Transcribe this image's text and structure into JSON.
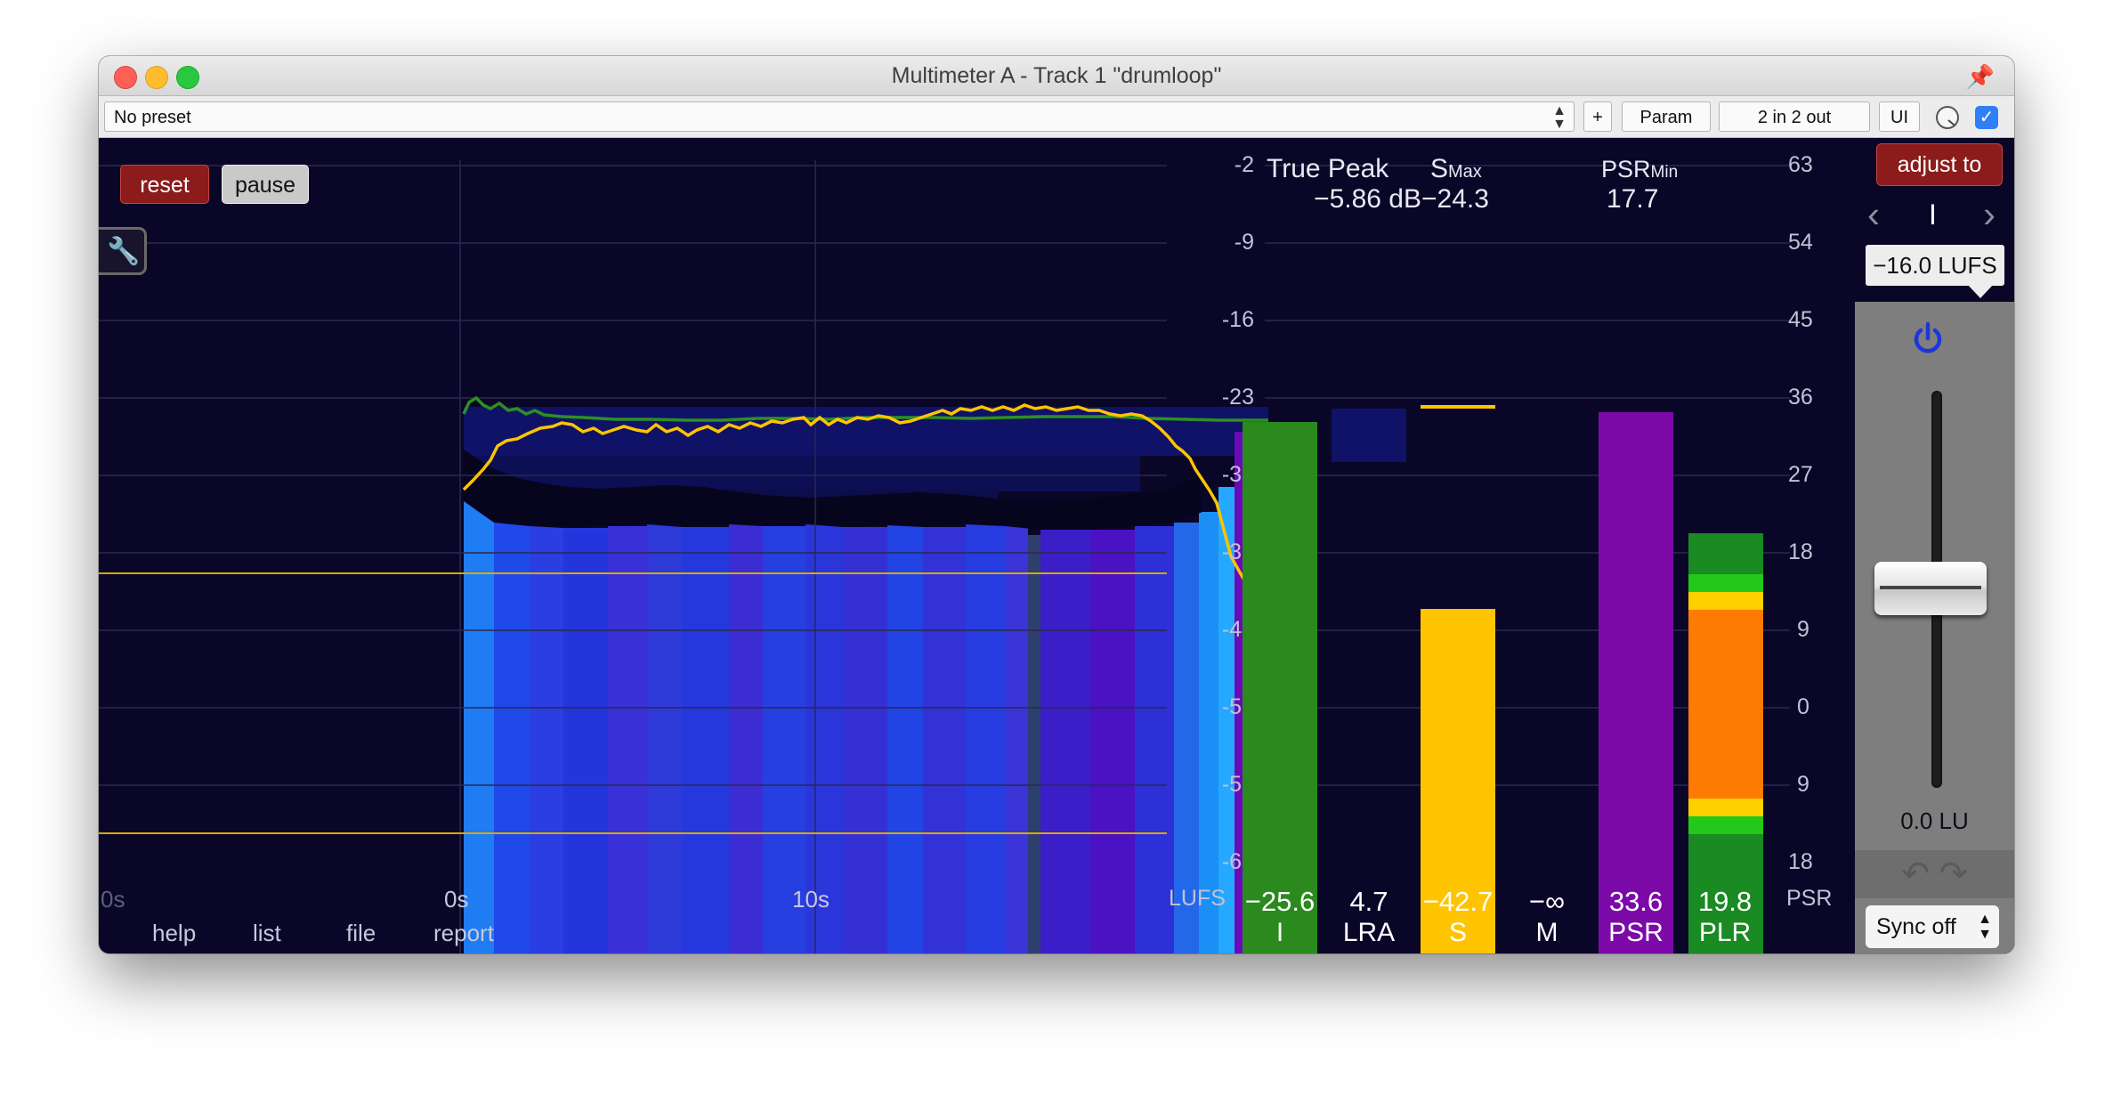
{
  "window": {
    "title": "Multimeter A - Track 1 \"drumloop\"",
    "pin_icon": "pin-icon"
  },
  "toolbar": {
    "preset": "No preset",
    "plus": "+",
    "param": "Param",
    "io": "2 in 2 out",
    "ui": "UI",
    "check": "✓"
  },
  "controls": {
    "reset": "reset",
    "pause": "pause",
    "wrench_icon": "wrench-icon"
  },
  "scale_lufs": {
    "ticks": [
      "-2",
      "-9",
      "-16",
      "-23",
      "-30",
      "-37",
      "-44",
      "-51",
      "-58",
      "-65"
    ],
    "unit": "LUFS"
  },
  "scale_psr": {
    "ticks": [
      "63",
      "54",
      "45",
      "36",
      "27",
      "18",
      "9",
      "0",
      "9",
      "18"
    ],
    "unit": "PSR"
  },
  "x_axis": [
    "0s",
    "0s",
    "10s"
  ],
  "footer_links": [
    "help",
    "list",
    "file",
    "report"
  ],
  "readouts": {
    "true_peak_label": "True Peak",
    "true_peak_value": "−5.86 dB",
    "smax_label": "S",
    "smax_sub": "Max",
    "smax_value": "−24.3",
    "psrmin_label": "PSR",
    "psrmin_sub": "Min",
    "psrmin_value": "17.7"
  },
  "meters": [
    {
      "label": "I",
      "value": "−25.6"
    },
    {
      "label": "LRA",
      "value": "4.7"
    },
    {
      "label": "S",
      "value": "−42.7"
    },
    {
      "label": "M",
      "value": "−∞"
    },
    {
      "label": "PSR",
      "value": "33.6"
    },
    {
      "label": "PLR",
      "value": "19.8"
    }
  ],
  "right_panel": {
    "adjust_to": "adjust to",
    "mode": "I",
    "target": "−16.0 LUFS",
    "gain": "0.0 LU",
    "undo_redo": "↶ ↷",
    "sync": "Sync off"
  },
  "colors": {
    "background": "#0a0628",
    "integrated": "#2a8a1e",
    "short_term": "#ffc400",
    "psr": "#7c0aa8",
    "plr_orange": "#ff7a00",
    "reset": "#8c1b1b"
  }
}
